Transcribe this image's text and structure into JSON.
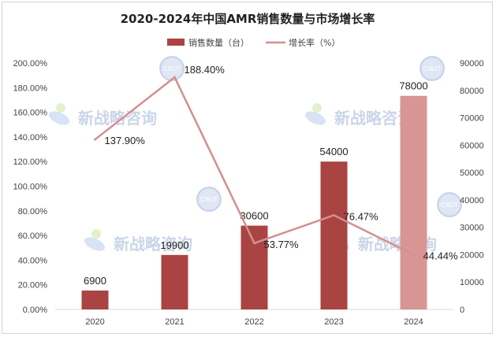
{
  "chart_data": {
    "type": "bar",
    "title": "2020-2024年中国AMR销售数量与市场增长率",
    "categories": [
      "2020",
      "2021",
      "2022",
      "2023",
      "2024"
    ],
    "series": [
      {
        "name": "销售数量（台）",
        "kind": "bar",
        "axis": "right",
        "values": [
          6900,
          19900,
          30600,
          54000,
          78000
        ],
        "color": "#a94442",
        "highlight_last_color": "#d99594"
      },
      {
        "name": "增长率（%）",
        "kind": "line",
        "axis": "left",
        "values": [
          137.9,
          188.4,
          53.77,
          76.47,
          44.44
        ],
        "labels": [
          "137.90%",
          "188.40%",
          "53.77%",
          "76.47%",
          "44.44%"
        ],
        "color": "#d48f8f"
      }
    ],
    "left_axis": {
      "ylim": [
        0,
        200
      ],
      "step": 20,
      "tick_labels": [
        "0.00%",
        "20.00%",
        "40.00%",
        "60.00%",
        "80.00%",
        "100.00%",
        "120.00%",
        "140.00%",
        "160.00%",
        "180.00%",
        "200.00%"
      ]
    },
    "right_axis": {
      "ylim": [
        0,
        90000
      ],
      "step": 10000,
      "tick_labels": [
        "0",
        "10000",
        "20000",
        "30000",
        "40000",
        "50000",
        "60000",
        "70000",
        "80000",
        "90000"
      ]
    },
    "legend": {
      "position": "top",
      "items": [
        "销售数量（台）",
        "增长率（%）"
      ]
    },
    "grid": false
  },
  "watermark": {
    "text": "新战略咨询",
    "badge": "CWJT"
  }
}
